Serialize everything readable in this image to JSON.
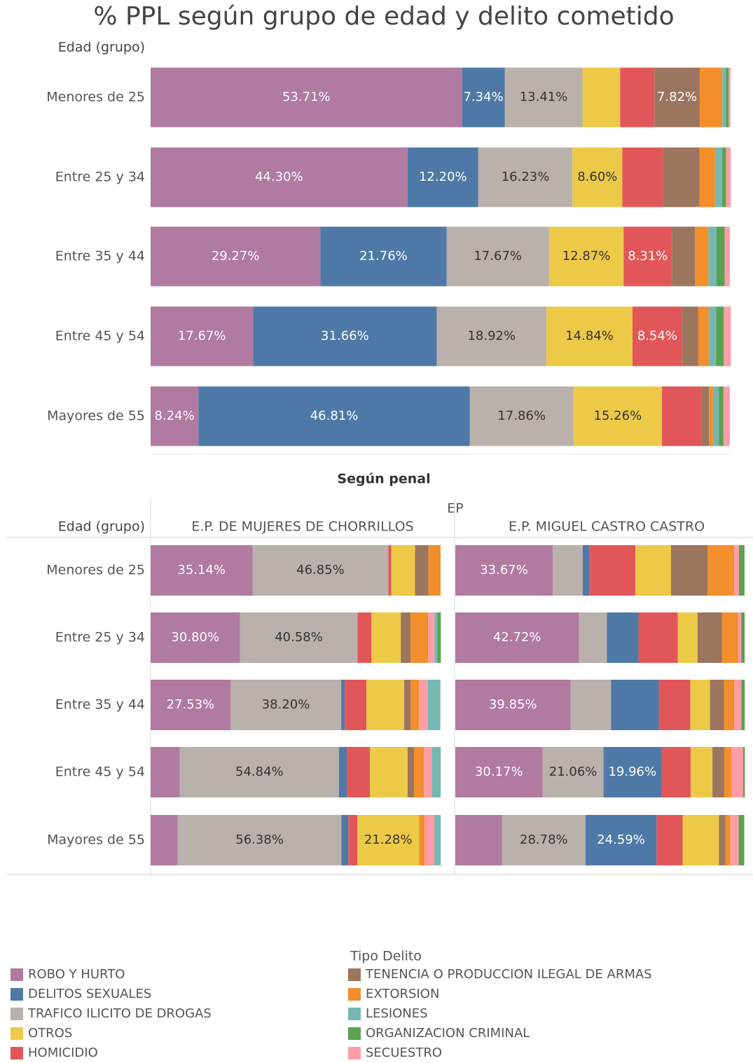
{
  "title": "% PPL según grupo de edad y delito cometido",
  "chart_data": [
    {
      "type": "stacked_bar_h",
      "axis_label": "Edad (grupo)",
      "xlim": [
        0,
        100
      ],
      "categories": [
        "Menores de 25",
        "Entre 25 y 34",
        "Entre 35 y 44",
        "Entre 45 y 54",
        "Mayores de 55"
      ],
      "series": [
        {
          "name": "ROBO Y HURTO",
          "color": "#b07aa1",
          "values": [
            53.71,
            44.3,
            29.27,
            17.67,
            8.24
          ],
          "value_labels": [
            "53.71%",
            "44.30%",
            "29.27%",
            "17.67%",
            "8.24%"
          ]
        },
        {
          "name": "DELITOS SEXUALES",
          "color": "#4e79a7",
          "values": [
            7.34,
            12.2,
            21.76,
            31.66,
            46.81
          ],
          "value_labels": [
            "7.34%",
            "12.20%",
            "21.76%",
            "31.66%",
            "46.81%"
          ]
        },
        {
          "name": "TRAFICO ILICITO DE DROGAS",
          "color": "#bab0ac",
          "values": [
            13.41,
            16.23,
            17.67,
            18.92,
            17.86
          ],
          "value_labels": [
            "13.41%",
            "16.23%",
            "17.67%",
            "18.92%",
            "17.86%"
          ]
        },
        {
          "name": "OTROS",
          "color": "#edc948",
          "values": [
            6.5,
            8.6,
            12.87,
            14.84,
            15.26
          ],
          "value_labels": [
            null,
            "8.60%",
            "12.87%",
            "14.84%",
            "15.26%"
          ]
        },
        {
          "name": "HOMICIDIO",
          "color": "#e15759",
          "values": [
            5.9,
            7.0,
            8.31,
            8.54,
            6.8
          ],
          "value_labels": [
            null,
            null,
            "8.31%",
            "8.54%",
            null
          ]
        },
        {
          "name": "TENENCIA O PRODUCCION ILEGAL DE ARMAS",
          "color": "#9c755f",
          "values": [
            7.82,
            6.3,
            4.0,
            2.8,
            1.3
          ],
          "value_labels": [
            "7.82%",
            null,
            null,
            null,
            null
          ]
        },
        {
          "name": "EXTORSION",
          "color": "#f28e2b",
          "values": [
            3.9,
            2.7,
            2.3,
            1.8,
            0.7
          ]
        },
        {
          "name": "LESIONES",
          "color": "#76b7b2",
          "values": [
            0.6,
            1.2,
            1.4,
            1.3,
            1.0
          ]
        },
        {
          "name": "ORGANIZACION CRIMINAL",
          "color": "#59a14f",
          "values": [
            0.5,
            0.7,
            1.4,
            1.3,
            0.8
          ]
        },
        {
          "name": "SECUESTRO",
          "color": "#ff9da7",
          "values": [
            0.3,
            0.8,
            0.9,
            1.2,
            1.1
          ]
        }
      ]
    },
    {
      "type": "stacked_bar_h_panels",
      "title": "Según penal",
      "column_header": "EP",
      "axis_label": "Edad (grupo)",
      "xlim": [
        0,
        100
      ],
      "categories": [
        "Menores de 25",
        "Entre 25 y 34",
        "Entre 35 y 44",
        "Entre 45 y 54",
        "Mayores de 55"
      ],
      "panels": [
        {
          "name": "E.P. DE MUJERES DE CHORRILLOS",
          "series": [
            {
              "name": "ROBO Y HURTO",
              "color": "#b07aa1",
              "values": [
                35.14,
                30.8,
                27.53,
                10.1,
                9.4
              ],
              "value_labels": [
                "35.14%",
                "30.80%",
                "27.53%",
                null,
                null
              ]
            },
            {
              "name": "TRAFICO ILICITO DE DROGAS",
              "color": "#bab0ac",
              "values": [
                46.85,
                40.58,
                38.2,
                54.84,
                56.38
              ],
              "value_labels": [
                "46.85%",
                "40.58%",
                "38.20%",
                "54.84%",
                "56.38%"
              ]
            },
            {
              "name": "DELITOS SEXUALES",
              "color": "#4e79a7",
              "values": [
                0,
                0,
                1.2,
                2.7,
                2.4
              ]
            },
            {
              "name": "HOMICIDIO",
              "color": "#e15759",
              "values": [
                1.0,
                4.8,
                7.5,
                8.0,
                3.1
              ]
            },
            {
              "name": "OTROS",
              "color": "#edc948",
              "values": [
                8.2,
                10.1,
                13.0,
                13.0,
                21.28
              ],
              "value_labels": [
                null,
                null,
                null,
                null,
                "21.28%"
              ]
            },
            {
              "name": "TENENCIA O PRODUCCION ILEGAL DE ARMAS",
              "color": "#9c755f",
              "values": [
                4.6,
                3.4,
                2.2,
                2.2,
                0
              ]
            },
            {
              "name": "EXTORSION",
              "color": "#f28e2b",
              "values": [
                4.2,
                6.0,
                2.9,
                3.4,
                1.9
              ]
            },
            {
              "name": "SECUESTRO",
              "color": "#ff9da7",
              "values": [
                0,
                2.2,
                3.1,
                2.7,
                3.4
              ]
            },
            {
              "name": "LESIONES",
              "color": "#76b7b2",
              "values": [
                0,
                1.0,
                4.3,
                3.1,
                2.2
              ]
            },
            {
              "name": "ORGANIZACION CRIMINAL",
              "color": "#59a14f",
              "values": [
                0,
                1.2,
                0,
                0,
                0
              ]
            }
          ]
        },
        {
          "name": "E.P. MIGUEL CASTRO CASTRO",
          "series": [
            {
              "name": "ROBO Y HURTO",
              "color": "#b07aa1",
              "values": [
                33.67,
                42.72,
                39.85,
                30.17,
                16.2
              ],
              "value_labels": [
                "33.67%",
                "42.72%",
                "39.85%",
                "30.17%",
                null
              ]
            },
            {
              "name": "TRAFICO ILICITO DE DROGAS",
              "color": "#bab0ac",
              "values": [
                10.4,
                9.7,
                14.0,
                21.06,
                28.78
              ],
              "value_labels": [
                null,
                null,
                null,
                "21.06%",
                "28.78%"
              ]
            },
            {
              "name": "DELITOS SEXUALES",
              "color": "#4e79a7",
              "values": [
                2.2,
                10.9,
                16.5,
                19.96,
                24.59
              ],
              "value_labels": [
                null,
                null,
                null,
                "19.96%",
                "24.59%"
              ]
            },
            {
              "name": "HOMICIDIO",
              "color": "#e15759",
              "values": [
                16.0,
                13.6,
                10.9,
                10.2,
                9.0
              ]
            },
            {
              "name": "OTROS",
              "color": "#edc948",
              "values": [
                12.3,
                6.8,
                6.8,
                7.5,
                12.6
              ]
            },
            {
              "name": "TENENCIA O PRODUCCION ILEGAL DE ARMAS",
              "color": "#9c755f",
              "values": [
                12.6,
                8.5,
                4.8,
                4.1,
                2.2
              ]
            },
            {
              "name": "EXTORSION",
              "color": "#f28e2b",
              "values": [
                9.2,
                5.5,
                3.6,
                2.4,
                1.7
              ]
            },
            {
              "name": "SECUESTRO",
              "color": "#ff9da7",
              "values": [
                1.7,
                1.1,
                2.4,
                4.1,
                2.9
              ]
            },
            {
              "name": "LESIONES",
              "color": "#76b7b2",
              "values": [
                0,
                0,
                0,
                0,
                0
              ]
            },
            {
              "name": "ORGANIZACION CRIMINAL",
              "color": "#59a14f",
              "values": [
                1.9,
                1.2,
                1.2,
                0.6,
                1.9
              ]
            }
          ]
        }
      ]
    }
  ],
  "legend": {
    "title": "Tipo Delito"
  }
}
